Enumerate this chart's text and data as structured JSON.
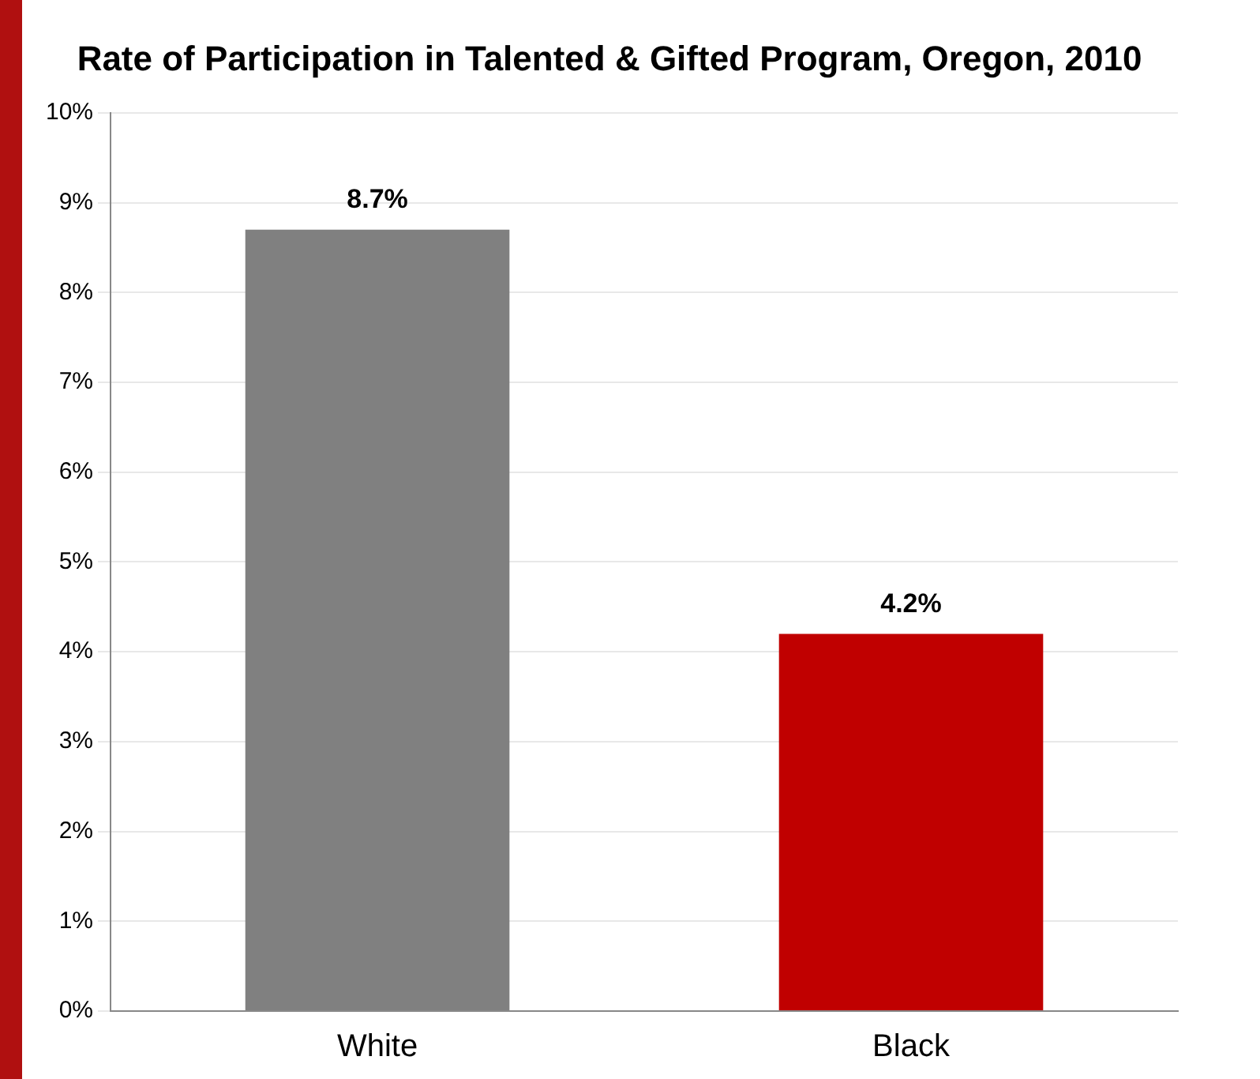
{
  "chart_data": {
    "type": "bar",
    "title": "Rate of Participation in Talented & Gifted Program, Oregon, 2010",
    "categories": [
      "White",
      "Black"
    ],
    "values": [
      8.7,
      4.2
    ],
    "colors": [
      "#808080",
      "#c00000"
    ],
    "value_labels": [
      "8.7%",
      "4.2%"
    ],
    "ylim": [
      0,
      10
    ],
    "yticks": [
      {
        "value": 0,
        "label": "0%"
      },
      {
        "value": 1,
        "label": "1%"
      },
      {
        "value": 2,
        "label": "2%"
      },
      {
        "value": 3,
        "label": "3%"
      },
      {
        "value": 4,
        "label": "4%"
      },
      {
        "value": 5,
        "label": "5%"
      },
      {
        "value": 6,
        "label": "6%"
      },
      {
        "value": 7,
        "label": "7%"
      },
      {
        "value": 8,
        "label": "8%"
      },
      {
        "value": 9,
        "label": "9%"
      },
      {
        "value": 10,
        "label": "10%"
      }
    ],
    "grid": "y",
    "legend": false
  }
}
